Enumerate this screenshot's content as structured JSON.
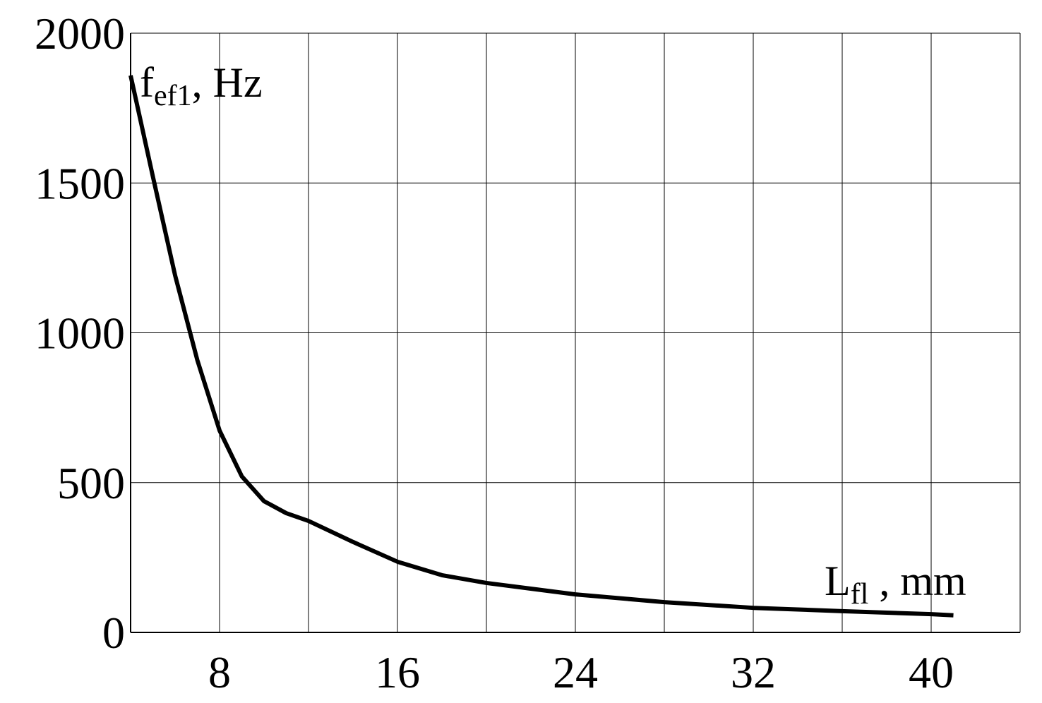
{
  "chart_data": {
    "type": "line",
    "x_label": {
      "base": "L",
      "sub": "fl",
      "rest": " , mm"
    },
    "y_label": {
      "base": "f",
      "sub": "ef1",
      "rest": ", Hz"
    },
    "x": [
      4,
      5,
      6,
      7,
      8,
      9,
      10,
      11,
      12,
      14,
      16,
      18,
      20,
      24,
      28,
      32,
      36,
      40,
      41
    ],
    "series": [
      {
        "color": "#000000",
        "values": [
          1859,
          1522,
          1192,
          909,
          674,
          521,
          438,
          398,
          372,
          302,
          236,
          191,
          165,
          127,
          101,
          82,
          71,
          61,
          57
        ]
      }
    ],
    "xlim": [
      4,
      44
    ],
    "xticks": [
      8,
      16,
      24,
      32,
      40
    ],
    "x_minor_grid": [
      12,
      20,
      28,
      36,
      44
    ],
    "ylim": [
      0,
      2000
    ],
    "yticks": [
      0,
      500,
      1000,
      1500,
      2000
    ],
    "grid": true
  }
}
